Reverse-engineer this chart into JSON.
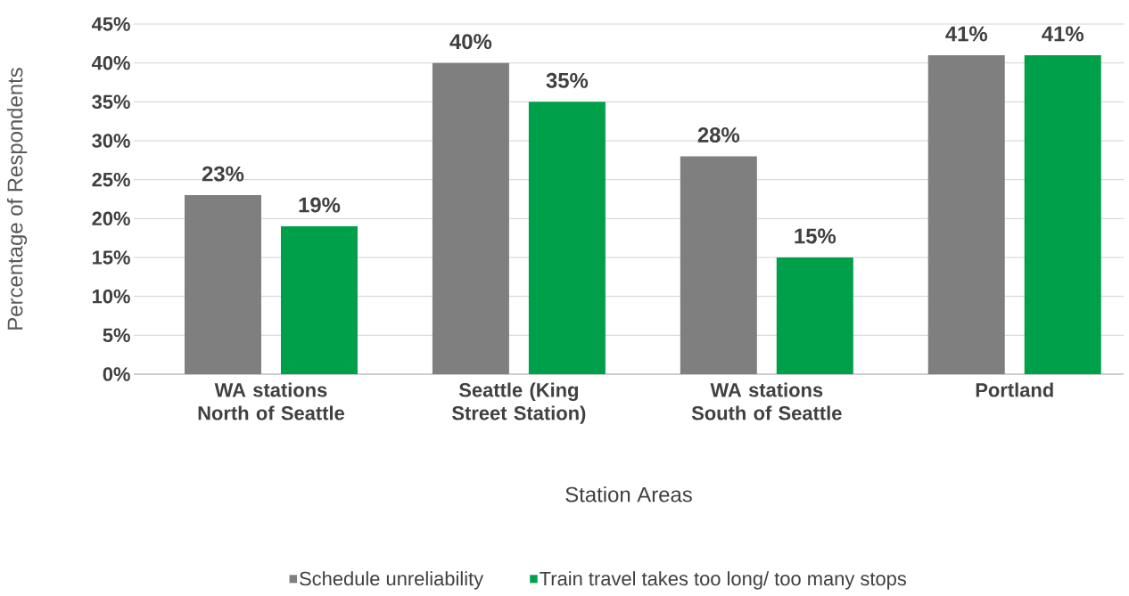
{
  "chart_data": {
    "type": "bar",
    "xlabel": "Station Areas",
    "ylabel": "Percentage of Respondents",
    "categories": [
      "WA stations North of Seattle",
      "Seattle (King Street Station)",
      "WA stations South of Seattle",
      "Portland"
    ],
    "series": [
      {
        "name": "Schedule unreliability",
        "color": "#7f7f7f",
        "values": [
          23,
          40,
          28,
          41
        ],
        "value_labels": [
          "23%",
          "40%",
          "28%",
          "41%"
        ]
      },
      {
        "name": "Train travel takes too long/ too many stops",
        "color": "#00a04a",
        "values": [
          19,
          35,
          15,
          41
        ],
        "value_labels": [
          "19%",
          "35%",
          "15%",
          "41%"
        ]
      }
    ],
    "ylim": [
      0,
      45
    ],
    "yticks": [
      {
        "value": 0,
        "label": "0%"
      },
      {
        "value": 5,
        "label": "5%"
      },
      {
        "value": 10,
        "label": "10%"
      },
      {
        "value": 15,
        "label": "15%"
      },
      {
        "value": 20,
        "label": "20%"
      },
      {
        "value": 25,
        "label": "25%"
      },
      {
        "value": 30,
        "label": "30%"
      },
      {
        "value": 35,
        "label": "35%"
      },
      {
        "value": 40,
        "label": "40%"
      },
      {
        "value": 45,
        "label": "45%"
      }
    ],
    "grid": "y",
    "legend": "bottom"
  }
}
